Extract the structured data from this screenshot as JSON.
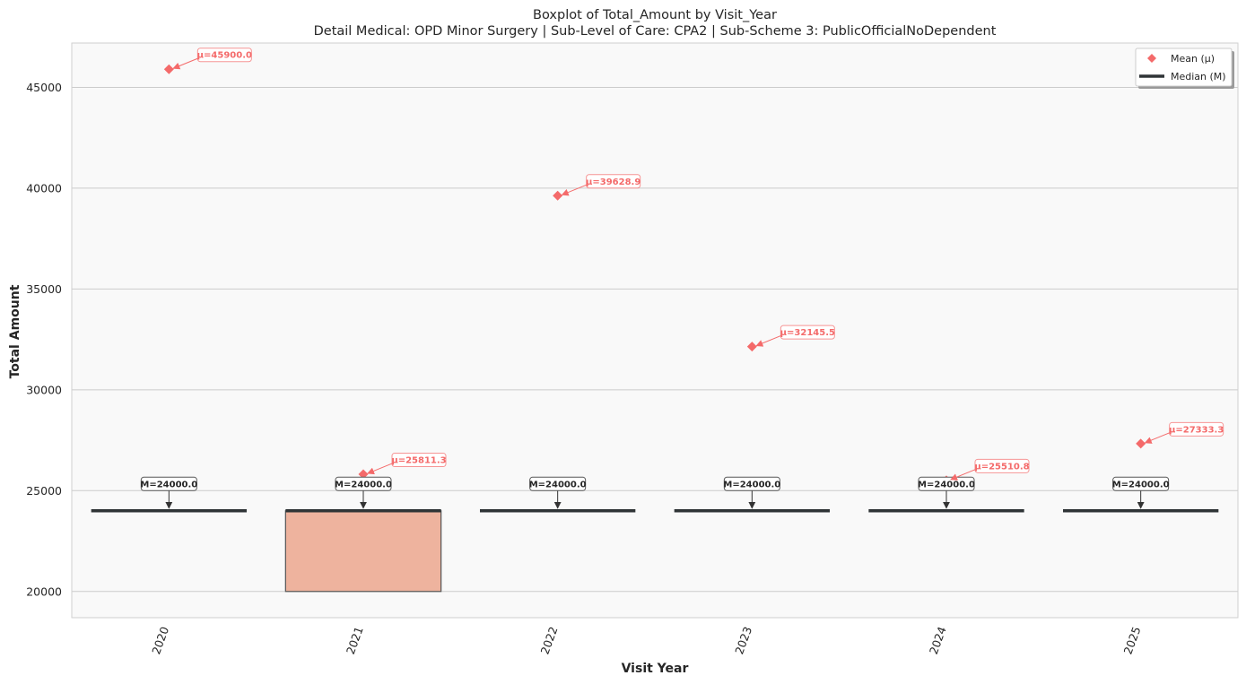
{
  "chart_data": {
    "type": "box",
    "title": "Boxplot of Total_Amount by Visit_Year",
    "subtitle": "Detail Medical: OPD Minor Surgery | Sub-Level of Care: CPA2 | Sub-Scheme 3: PublicOfficialNoDependent",
    "xlabel": "Visit Year",
    "ylabel": "Total Amount",
    "ylim": [
      18700,
      47200
    ],
    "yticks": [
      20000,
      25000,
      30000,
      35000,
      40000,
      45000
    ],
    "grid": "horizontal",
    "legend_position": "top-right",
    "legend": [
      {
        "name": "Mean (μ)",
        "marker": "diamond",
        "color": "#f46a6a"
      },
      {
        "name": "Median (M)",
        "marker": "line",
        "color": "#2f3436"
      }
    ],
    "categories": [
      "2020",
      "2021",
      "2022",
      "2023",
      "2024",
      "2025"
    ],
    "boxes": [
      {
        "category": "2020",
        "q1": 24000,
        "q3": 24000,
        "median": 24000,
        "mean": 45900.0,
        "median_label": "M=24000.0",
        "mean_label": "μ=45900.0",
        "color": "#f7a58c"
      },
      {
        "category": "2021",
        "q1": 20000,
        "q3": 24000,
        "median": 24000,
        "mean": 25811.3,
        "median_label": "M=24000.0",
        "mean_label": "μ=25811.3",
        "color": "#eeb39e"
      },
      {
        "category": "2022",
        "q1": 24000,
        "q3": 24000,
        "median": 24000,
        "mean": 39628.9,
        "median_label": "M=24000.0",
        "mean_label": "μ=39628.9",
        "color": "#f7a58c"
      },
      {
        "category": "2023",
        "q1": 24000,
        "q3": 24000,
        "median": 24000,
        "mean": 32145.5,
        "median_label": "M=24000.0",
        "mean_label": "μ=32145.5",
        "color": "#f7a58c"
      },
      {
        "category": "2024",
        "q1": 24000,
        "q3": 24000,
        "median": 24000,
        "mean": 25510.8,
        "median_label": "M=24000.0",
        "mean_label": "μ=25510.8",
        "color": "#f7a58c"
      },
      {
        "category": "2025",
        "q1": 24000,
        "q3": 24000,
        "median": 24000,
        "mean": 27333.3,
        "median_label": "M=24000.0",
        "mean_label": "μ=27333.3",
        "color": "#f7a58c"
      }
    ],
    "colors": {
      "mean": "#f46a6a",
      "median": "#2f3436",
      "plot_bg": "#f9f9f9",
      "grid": "#cccccc",
      "box_edge": "#555555"
    }
  }
}
